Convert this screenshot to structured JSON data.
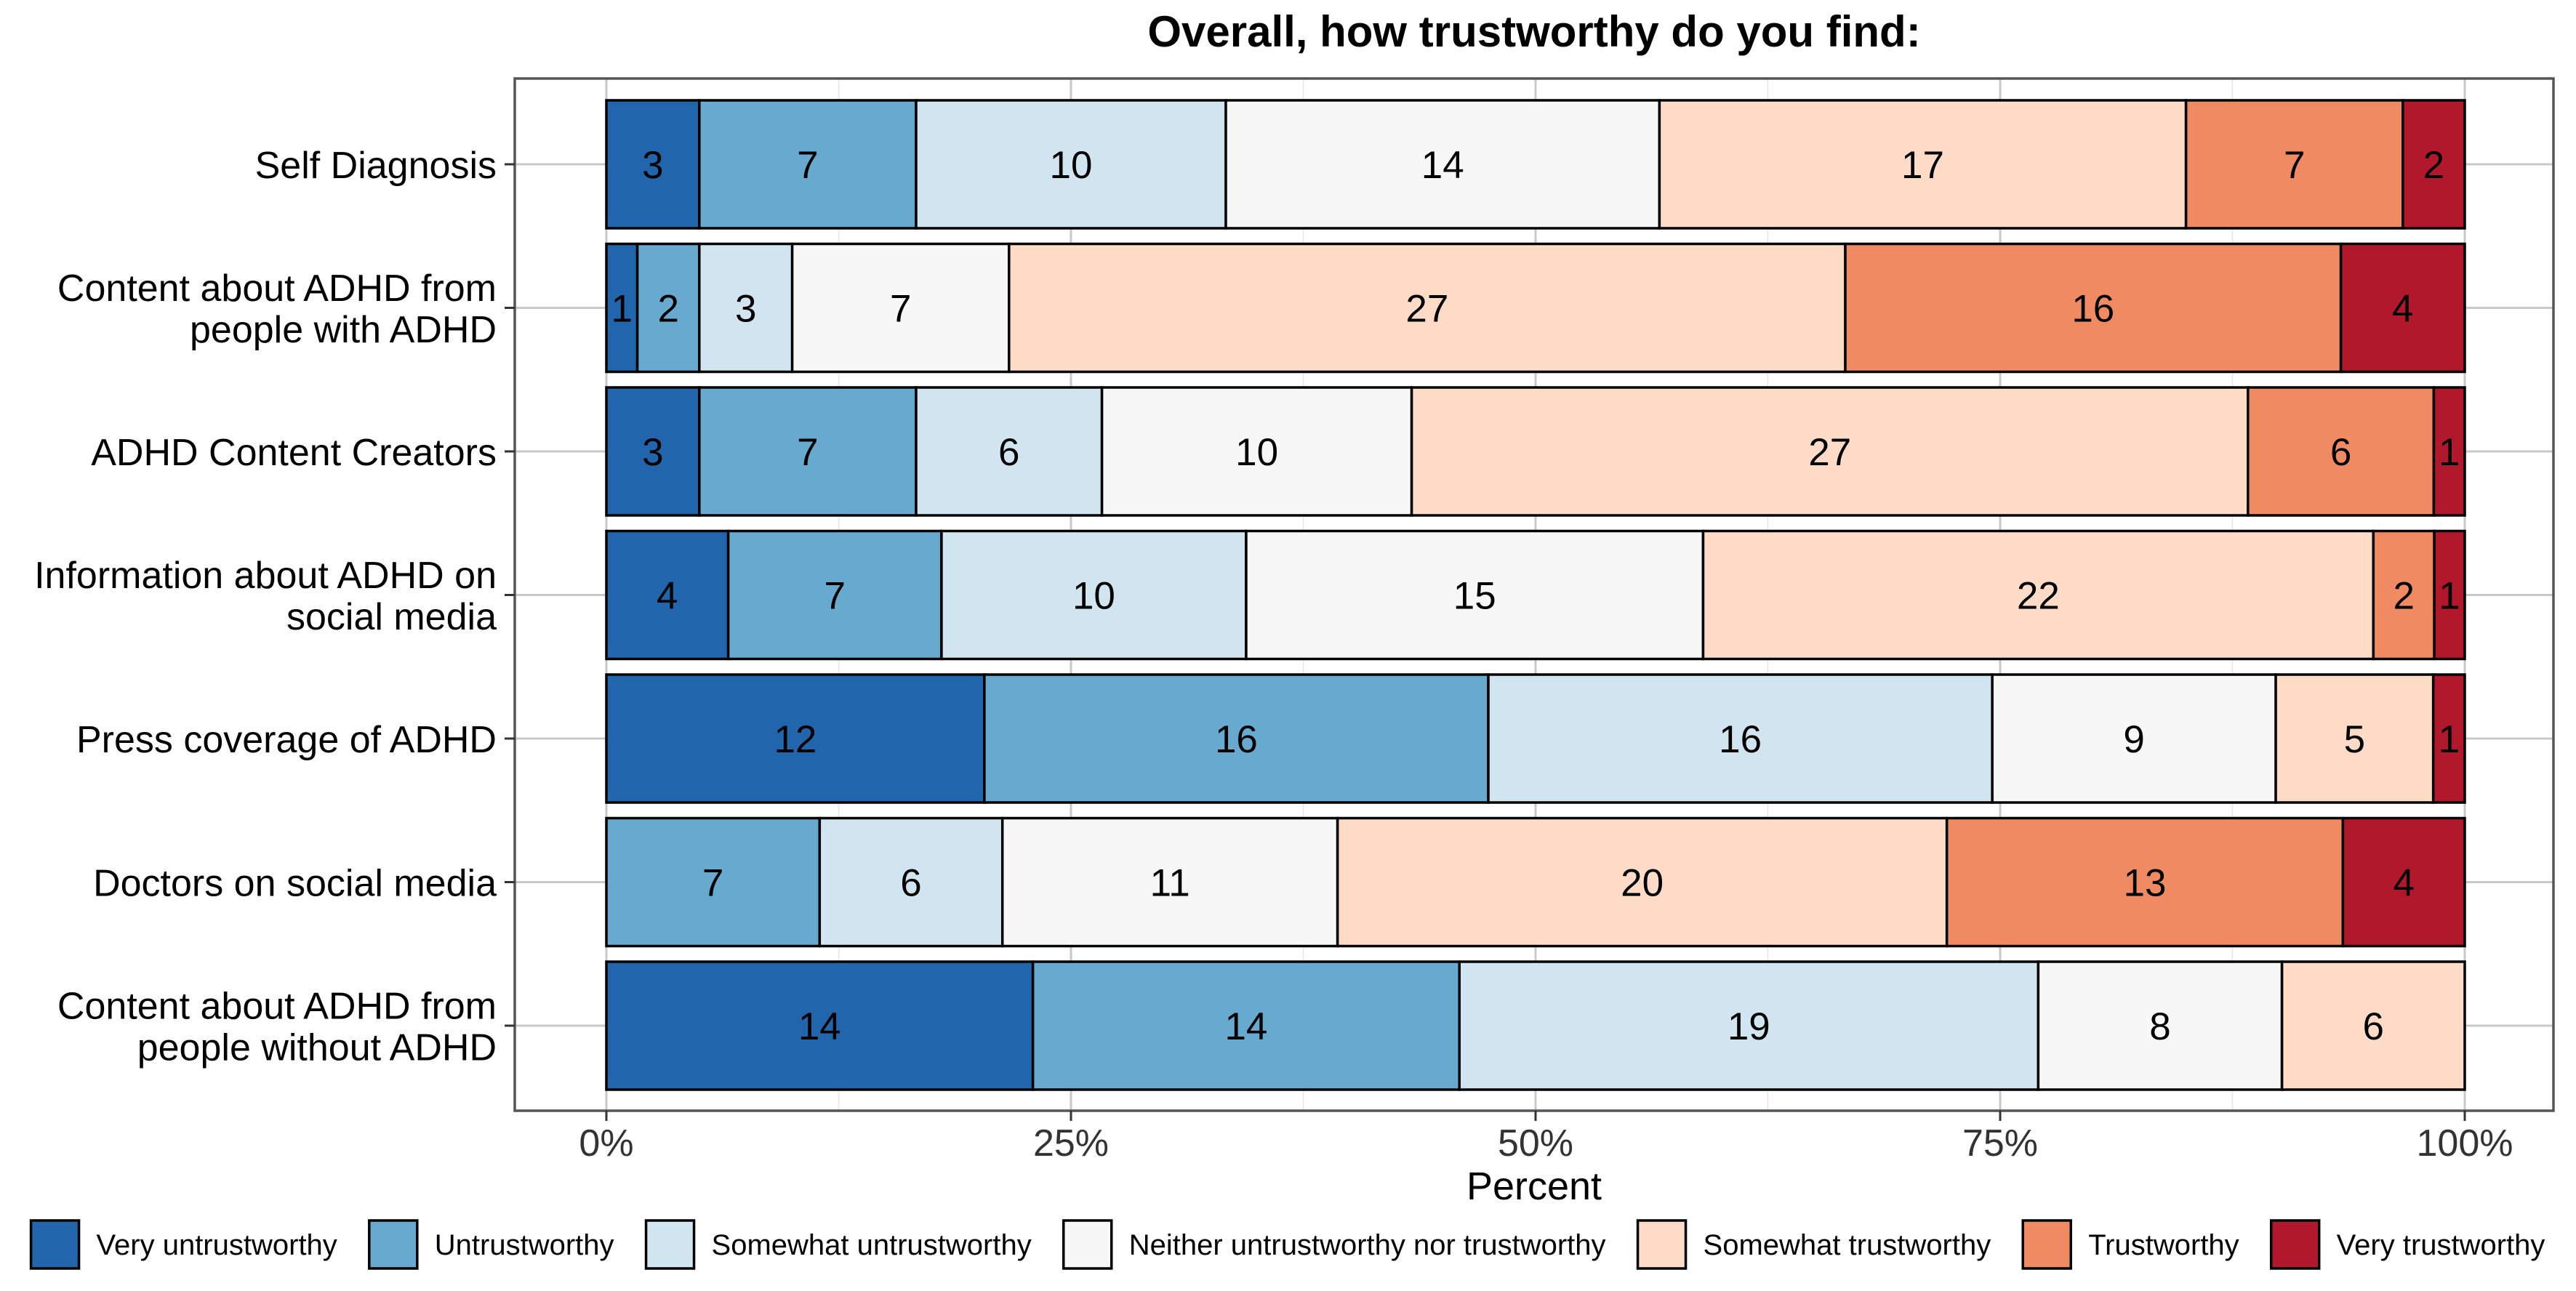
{
  "chart_data": {
    "type": "bar",
    "orientation": "horizontal",
    "stacked": true,
    "normalized_to_percent": true,
    "title": "Overall, how trustworthy do you find:",
    "xlabel": "Percent",
    "ylabel": "",
    "xlim": [
      0,
      100
    ],
    "x_ticks": [
      "0%",
      "25%",
      "50%",
      "75%",
      "100%"
    ],
    "x_tick_values": [
      0,
      25,
      50,
      75,
      100
    ],
    "grid": true,
    "legend_position": "bottom",
    "categories": [
      "Self Diagnosis",
      "Content about ADHD from\npeople with ADHD",
      "ADHD Content Creators",
      "Information about ADHD on\nsocial media",
      "Press coverage of ADHD",
      "Doctors on social media",
      "Content about ADHD from\npeople without ADHD"
    ],
    "series": [
      {
        "name": "Very untrustworthy",
        "color": "#2166AC",
        "values": [
          3,
          1,
          3,
          4,
          12,
          0,
          14
        ]
      },
      {
        "name": "Untrustworthy",
        "color": "#67A9CF",
        "values": [
          7,
          2,
          7,
          7,
          16,
          7,
          14
        ]
      },
      {
        "name": "Somewhat untrustworthy",
        "color": "#D1E5F0",
        "values": [
          10,
          3,
          6,
          10,
          16,
          6,
          19
        ]
      },
      {
        "name": "Neither untrustworthy nor trustworthy",
        "color": "#F7F7F7",
        "values": [
          14,
          7,
          10,
          15,
          9,
          11,
          8
        ]
      },
      {
        "name": "Somewhat trustworthy",
        "color": "#FDDBC7",
        "values": [
          17,
          27,
          27,
          22,
          5,
          20,
          6
        ]
      },
      {
        "name": "Trustworthy",
        "color": "#EF8A62",
        "values": [
          7,
          16,
          6,
          2,
          0,
          13,
          0
        ]
      },
      {
        "name": "Very trustworthy",
        "color": "#B2182B",
        "values": [
          2,
          4,
          1,
          1,
          1,
          4,
          0
        ]
      }
    ]
  }
}
